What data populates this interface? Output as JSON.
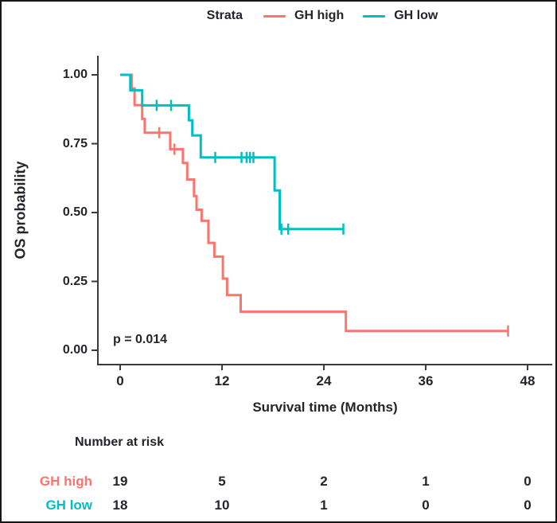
{
  "figure": {
    "background_color": "#ffffff",
    "border_color": "#161616",
    "text_color": "#24242a",
    "axis_color": "#3a3a3a"
  },
  "legend": {
    "title": "Strata",
    "items": [
      {
        "label": "GH high",
        "color": "#F8766D"
      },
      {
        "label": "GH low",
        "color": "#00BFC4"
      }
    ]
  },
  "axes": {
    "ylabel": "OS probability",
    "xlabel": "Survival time (Months)",
    "yticks": [
      {
        "value": 1.0,
        "label": "1.00"
      },
      {
        "value": 0.75,
        "label": "0.75"
      },
      {
        "value": 0.5,
        "label": "0.50"
      },
      {
        "value": 0.25,
        "label": "0.25"
      },
      {
        "value": 0.0,
        "label": "0.00"
      }
    ],
    "xticks": [
      "0",
      "12",
      "24",
      "36",
      "48"
    ]
  },
  "annotation": {
    "p_value": "p = 0.014"
  },
  "chart_data": {
    "type": "line",
    "subtype": "kaplan_meier_step",
    "title": "",
    "xlabel": "Survival time (Months)",
    "ylabel": "OS probability",
    "xlim": [
      0,
      50
    ],
    "ylim": [
      0,
      1
    ],
    "xticks": [
      0,
      12,
      24,
      36,
      48
    ],
    "yticks": [
      1.0,
      0.75,
      0.5,
      0.25,
      0.0
    ],
    "grid": false,
    "legend_title": "Strata",
    "legend_position": "top",
    "p_value_annotation": "p = 0.014",
    "series": [
      {
        "name": "GH high",
        "color": "#F8766D",
        "steps": [
          [
            0,
            1.0
          ],
          [
            1.35,
            0.95
          ],
          [
            1.7,
            0.89
          ],
          [
            2.6,
            0.84
          ],
          [
            2.9,
            0.79
          ],
          [
            5.9,
            0.73
          ],
          [
            7.4,
            0.68
          ],
          [
            7.9,
            0.62
          ],
          [
            8.7,
            0.56
          ],
          [
            9.0,
            0.51
          ],
          [
            9.6,
            0.47
          ],
          [
            10.4,
            0.39
          ],
          [
            11.1,
            0.34
          ],
          [
            12.1,
            0.26
          ],
          [
            12.6,
            0.2
          ],
          [
            14.2,
            0.14
          ],
          [
            26.6,
            0.07
          ]
        ],
        "end_time": 45.7,
        "censor_marks": [
          [
            4.6,
            0.79
          ],
          [
            6.4,
            0.73
          ],
          [
            45.7,
            0.07
          ]
        ]
      },
      {
        "name": "GH low",
        "color": "#00BFC4",
        "steps": [
          [
            0,
            1.0
          ],
          [
            1.2,
            0.944
          ],
          [
            2.6,
            0.889
          ],
          [
            8.1,
            0.835
          ],
          [
            8.5,
            0.78
          ],
          [
            9.5,
            0.7
          ],
          [
            18.2,
            0.58
          ],
          [
            18.8,
            0.44
          ]
        ],
        "end_time": 26.3,
        "censor_marks": [
          [
            4.3,
            0.889
          ],
          [
            6.0,
            0.889
          ],
          [
            11.2,
            0.7
          ],
          [
            14.3,
            0.7
          ],
          [
            14.9,
            0.7
          ],
          [
            15.3,
            0.7
          ],
          [
            15.7,
            0.7
          ],
          [
            19.0,
            0.44
          ],
          [
            19.8,
            0.44
          ],
          [
            26.3,
            0.44
          ]
        ]
      }
    ],
    "risk_table": {
      "title": "Number at risk",
      "time_points": [
        0,
        12,
        24,
        36,
        48
      ],
      "rows": [
        {
          "label": "GH high",
          "color": "#F8766D",
          "values": [
            19,
            5,
            2,
            1,
            0
          ]
        },
        {
          "label": "GH low",
          "color": "#00BFC4",
          "values": [
            18,
            10,
            1,
            0,
            0
          ]
        }
      ]
    }
  }
}
